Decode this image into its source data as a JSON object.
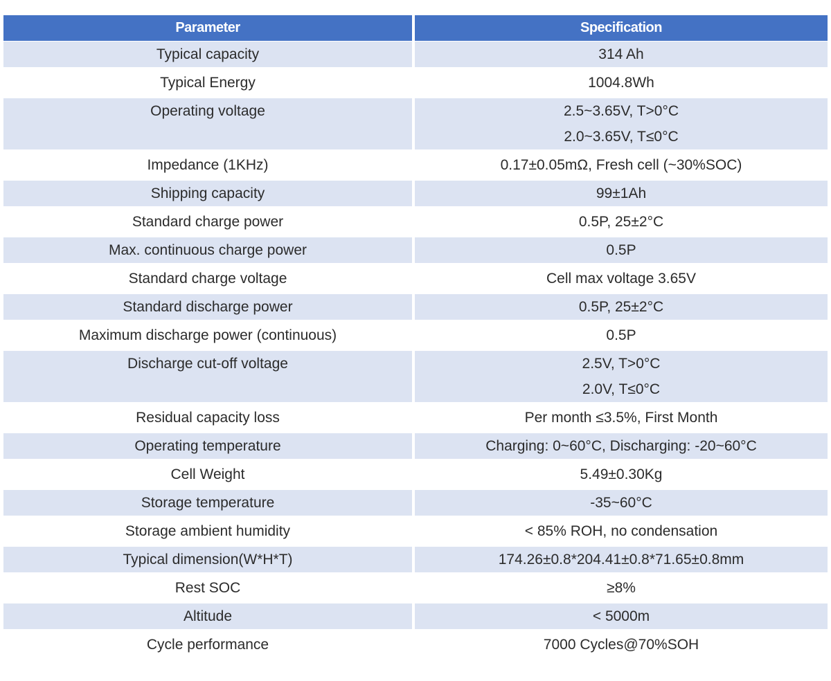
{
  "table": {
    "headers": {
      "parameter": "Parameter",
      "specification": "Specification"
    },
    "colors": {
      "header_bg": "#4472c4",
      "header_text": "#ffffff",
      "shaded_row": "#dce3f2",
      "plain_row": "#ffffff",
      "body_text": "#2b2b2b"
    },
    "rows": [
      {
        "parameter": "Typical capacity",
        "specification": [
          "314 Ah"
        ]
      },
      {
        "parameter": "Typical Energy",
        "specification": [
          "1004.8Wh"
        ]
      },
      {
        "parameter": "Operating voltage",
        "specification": [
          "2.5~3.65V, T>0°C",
          "2.0~3.65V, T≤0°C"
        ]
      },
      {
        "parameter": "Impedance (1KHz)",
        "specification": [
          "0.17±0.05mΩ, Fresh cell (~30%SOC)"
        ]
      },
      {
        "parameter": "Shipping capacity",
        "specification": [
          "99±1Ah"
        ]
      },
      {
        "parameter": "Standard charge power",
        "specification": [
          "0.5P, 25±2°C"
        ]
      },
      {
        "parameter": "Max. continuous charge power",
        "specification": [
          "0.5P"
        ]
      },
      {
        "parameter": "Standard charge voltage",
        "specification": [
          "Cell max voltage 3.65V"
        ]
      },
      {
        "parameter": "Standard discharge power",
        "specification": [
          "0.5P, 25±2°C"
        ]
      },
      {
        "parameter": "Maximum discharge power (continuous)",
        "specification": [
          "0.5P"
        ]
      },
      {
        "parameter": "Discharge cut-off voltage",
        "specification": [
          "2.5V, T>0°C",
          "2.0V, T≤0°C"
        ]
      },
      {
        "parameter": "Residual capacity loss",
        "specification": [
          "Per month ≤3.5%, First Month"
        ]
      },
      {
        "parameter": "Operating temperature",
        "specification": [
          "Charging: 0~60°C, Discharging: -20~60°C"
        ]
      },
      {
        "parameter": "Cell Weight",
        "specification": [
          "5.49±0.30Kg"
        ]
      },
      {
        "parameter": "Storage temperature",
        "specification": [
          "-35~60°C"
        ]
      },
      {
        "parameter": "Storage ambient humidity",
        "specification": [
          "< 85% ROH, no condensation"
        ]
      },
      {
        "parameter": "Typical dimension(W*H*T)",
        "specification": [
          "174.26±0.8*204.41±0.8*71.65±0.8mm"
        ]
      },
      {
        "parameter": "Rest SOC",
        "specification": [
          "≥8%"
        ]
      },
      {
        "parameter": "Altitude",
        "specification": [
          "< 5000m"
        ]
      },
      {
        "parameter": "Cycle performance",
        "specification": [
          "7000 Cycles@70%SOH"
        ]
      }
    ]
  }
}
